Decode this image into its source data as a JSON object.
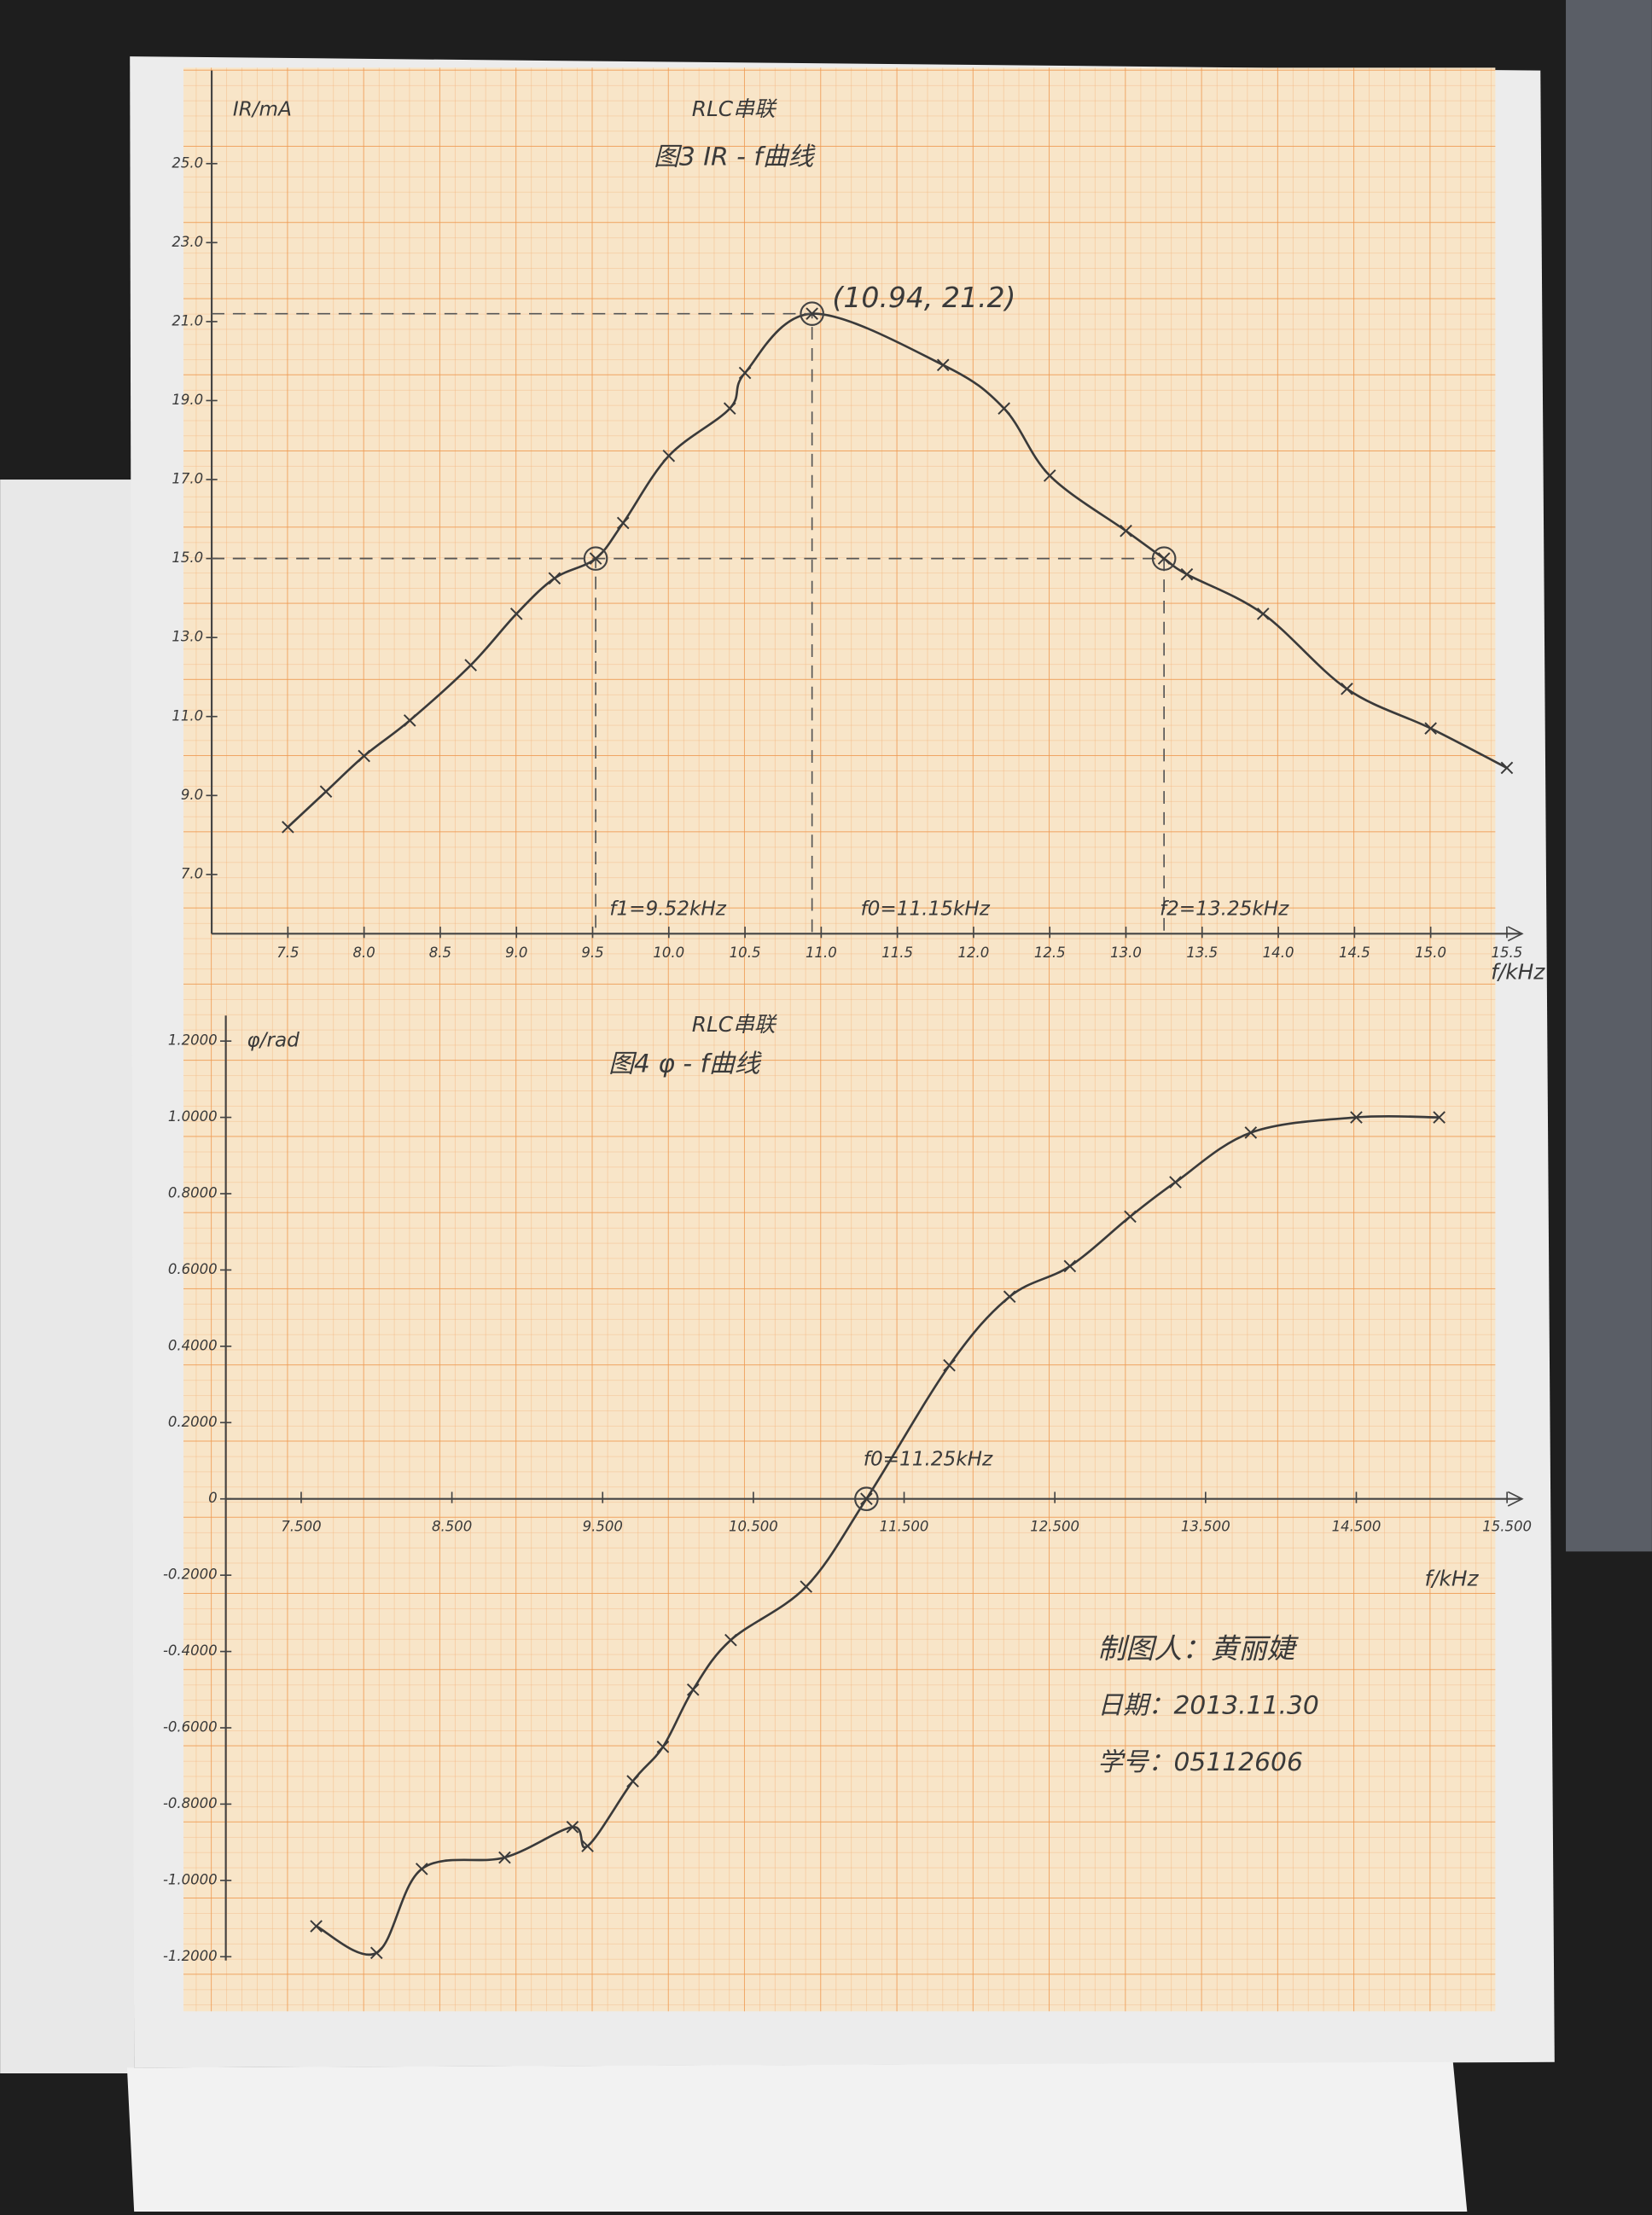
{
  "chart_data": [
    {
      "type": "line",
      "subtitle": "RLC串联",
      "title": "图3  IR - f曲线",
      "ylabel": "IR/mA",
      "xlabel": "f/kHz",
      "annotations": [
        "(10.94, 21.2)",
        "f1=9.52kHz",
        "f0=11.15kHz",
        "f2=13.25kHz"
      ],
      "x": [
        7.5,
        7.75,
        8.0,
        8.3,
        8.7,
        9.0,
        9.25,
        9.52,
        9.7,
        10.0,
        10.4,
        10.5,
        10.94,
        11.8,
        12.2,
        12.5,
        13.0,
        13.25,
        13.4,
        13.9,
        14.45,
        15.0,
        15.5
      ],
      "values": [
        8.2,
        9.1,
        10.0,
        10.9,
        12.3,
        13.6,
        14.5,
        15.0,
        15.9,
        17.6,
        18.8,
        19.7,
        21.2,
        19.9,
        18.8,
        17.1,
        15.7,
        15.0,
        14.6,
        13.6,
        11.7,
        10.7,
        9.7
      ],
      "color": "#3a3a3a",
      "xlim": [
        7.0,
        15.6
      ],
      "ylim": [
        5.5,
        27.0
      ],
      "xticks": [
        7.5,
        {
          "value": 8,
          "label": "8.0"
        },
        8.5,
        {
          "value": 9,
          "label": "9.0"
        },
        9.5,
        {
          "value": 10,
          "label": "10.0"
        },
        10.5,
        {
          "value": 11,
          "label": "11.0"
        },
        11.5,
        {
          "value": 12,
          "label": "12.0"
        },
        12.5,
        {
          "value": 13,
          "label": "13.0"
        },
        13.5,
        {
          "value": 14,
          "label": "14.0"
        },
        14.5,
        {
          "value": 15,
          "label": "15.0"
        },
        15.5
      ],
      "yticks": [
        {
          "value": 7,
          "label": "7.0"
        },
        {
          "value": 9,
          "label": "9.0"
        },
        {
          "value": 11,
          "label": "11.0"
        },
        {
          "value": 13,
          "label": "13.0"
        },
        {
          "value": 15,
          "label": "15.0"
        },
        {
          "value": 17,
          "label": "17.0"
        },
        {
          "value": 19,
          "label": "19.0"
        },
        {
          "value": 21,
          "label": "21.0"
        },
        {
          "value": 23,
          "label": "23.0"
        },
        {
          "value": 25,
          "label": "25.0"
        }
      ]
    },
    {
      "type": "line",
      "subtitle": "RLC串联",
      "title": "图4  φ - f曲线",
      "ylabel": "φ/rad",
      "xlabel": "f/kHz",
      "annotations": [
        "f0=11.25kHz"
      ],
      "x": [
        7.6,
        8.0,
        8.3,
        8.85,
        9.3,
        9.4,
        9.7,
        9.9,
        10.1,
        10.35,
        10.85,
        11.25,
        11.8,
        12.2,
        12.6,
        13.0,
        13.3,
        13.8,
        14.5,
        15.05
      ],
      "values": [
        -1.12,
        -1.19,
        -0.97,
        -0.94,
        -0.86,
        -0.91,
        -0.74,
        -0.65,
        -0.5,
        -0.37,
        -0.23,
        0,
        0.35,
        0.53,
        0.61,
        0.74,
        0.83,
        0.96,
        1.0,
        1.0
      ],
      "color": "#3a3a3a",
      "xlim": [
        7.0,
        15.6
      ],
      "ylim": [
        -1.21,
        1.23
      ],
      "xticks": [
        {
          "value": 7.5,
          "label": "7.500"
        },
        {
          "value": 8.5,
          "label": "8.500"
        },
        {
          "value": 9.5,
          "label": "9.500"
        },
        {
          "value": 10.5,
          "label": "10.500"
        },
        {
          "value": 11.5,
          "label": "11.500"
        },
        {
          "value": 12.5,
          "label": "12.500"
        },
        {
          "value": 13.5,
          "label": "13.500"
        },
        {
          "value": 14.5,
          "label": "14.500"
        },
        {
          "value": 15.5,
          "label": "15.500"
        }
      ],
      "yticks": [
        {
          "value": -1.2,
          "label": "-1.2000"
        },
        {
          "value": -1,
          "label": "-1.0000"
        },
        {
          "value": -0.8,
          "label": "-0.8000"
        },
        {
          "value": -0.6,
          "label": "-0.6000"
        },
        {
          "value": -0.4,
          "label": "-0.4000"
        },
        {
          "value": -0.2,
          "label": "-0.2000"
        },
        0,
        {
          "value": 0.2,
          "label": "0.2000"
        },
        {
          "value": 0.4,
          "label": "0.4000"
        },
        {
          "value": 0.6,
          "label": "0.6000"
        },
        {
          "value": 0.8,
          "label": "0.8000"
        },
        {
          "value": 1,
          "label": "1.0000"
        },
        {
          "value": 1.2,
          "label": "1.2000"
        }
      ]
    }
  ],
  "signature": [
    "制图人：黄丽婕",
    "日期：2013.11.30",
    "学号：05112606"
  ]
}
